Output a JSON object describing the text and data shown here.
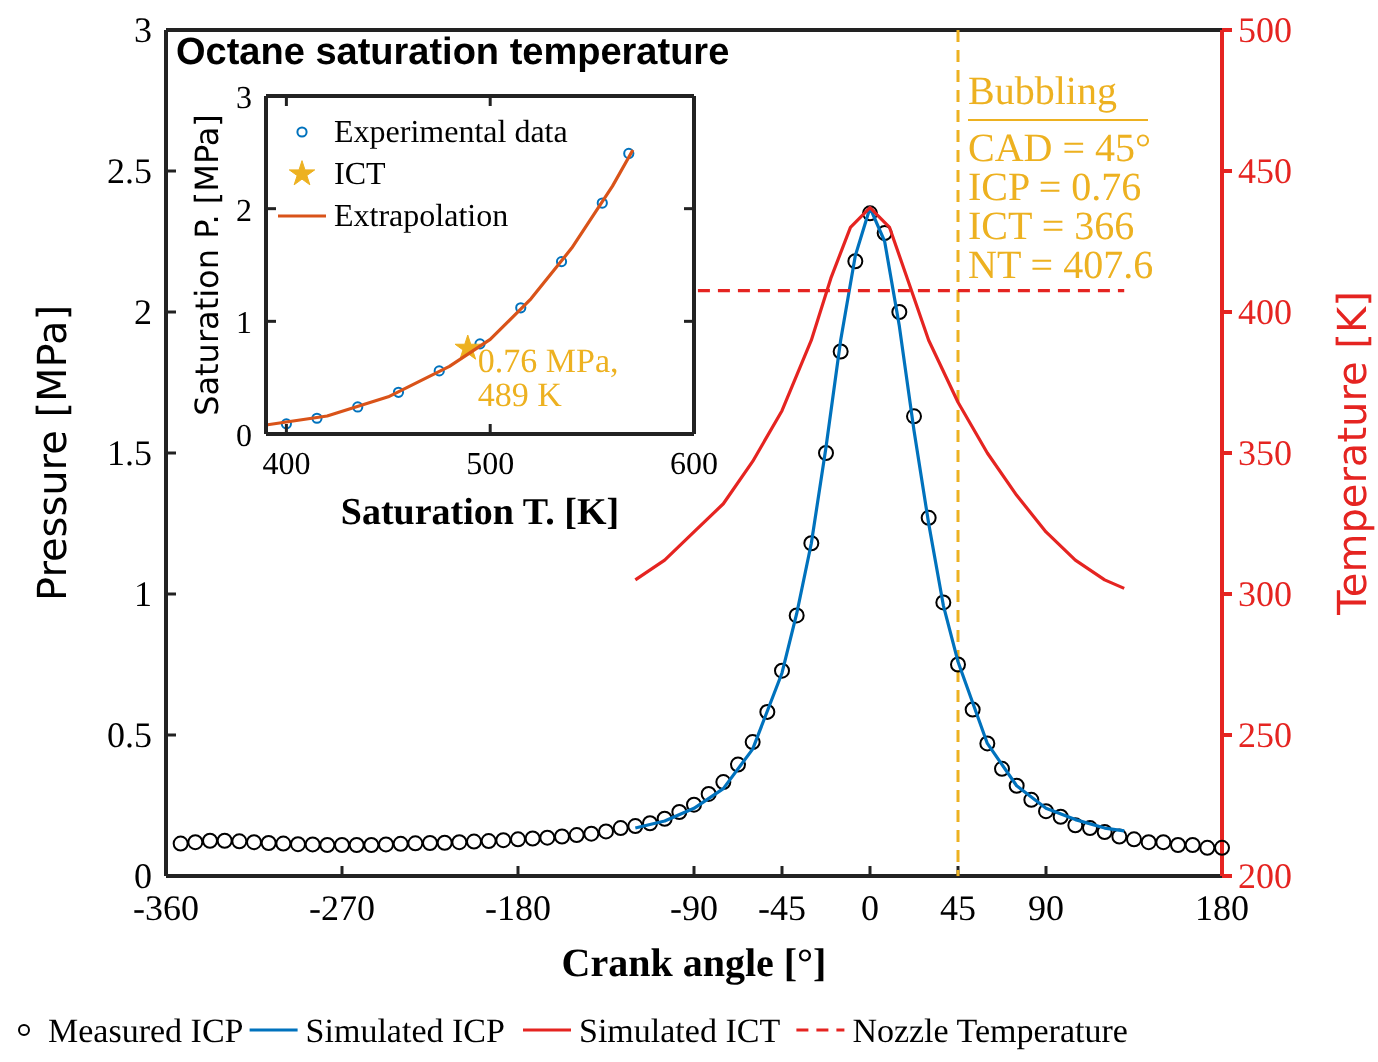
{
  "chart_data": [
    {
      "type": "line",
      "xlabel": "Crank angle [°]",
      "ylabel": "Pressure [MPa]",
      "y2label": "Temperature [K]",
      "xlim": [
        -360,
        180
      ],
      "xticks": [
        -360,
        -270,
        -180,
        -90,
        -45,
        0,
        45,
        90,
        180
      ],
      "ylim": [
        0,
        3
      ],
      "yticks": [
        0,
        0.5,
        1,
        1.5,
        2,
        2.5,
        3
      ],
      "y2lim": [
        200,
        500
      ],
      "y2ticks": [
        200,
        250,
        300,
        350,
        400,
        450,
        500
      ],
      "legend": "bottom",
      "grid": false,
      "ref_lines": [
        {
          "axis": "x",
          "value": 45,
          "color": "#edb120",
          "line_style": "dashed"
        }
      ],
      "annotations": [
        "Bubbling",
        "CAD = 45°",
        "ICP = 0.76",
        "ICT = 366",
        "NT = 407.6"
      ],
      "series": [
        {
          "name": "Measured ICP",
          "type": "scatter",
          "marker": "circle",
          "color": "#000000",
          "x": [
            -352.5,
            -345,
            -337.5,
            -330,
            -322.5,
            -315,
            -307.5,
            -300,
            -292.5,
            -285,
            -277.5,
            -270,
            -262.5,
            -255,
            -247.5,
            -240,
            -232.5,
            -225,
            -217.5,
            -210,
            -202.5,
            -195,
            -187.5,
            -180,
            -172.5,
            -165,
            -157.5,
            -150,
            -142.5,
            -135,
            -127.5,
            -120,
            -112.5,
            -105,
            -97.5,
            -90,
            -82.5,
            -75,
            -67.5,
            -60,
            -52.5,
            -45,
            -37.5,
            -30,
            -22.5,
            -15,
            -7.5,
            0,
            7.5,
            15,
            22.5,
            30,
            37.5,
            45,
            52.5,
            60,
            67.5,
            75,
            82.5,
            90,
            97.5,
            105,
            112.5,
            120,
            127.5,
            135,
            142.5,
            150,
            157.5,
            165,
            172.5,
            180
          ],
          "values": [
            0.115,
            0.12,
            0.125,
            0.125,
            0.123,
            0.12,
            0.117,
            0.115,
            0.113,
            0.112,
            0.11,
            0.11,
            0.11,
            0.11,
            0.112,
            0.114,
            0.116,
            0.117,
            0.118,
            0.12,
            0.122,
            0.124,
            0.127,
            0.13,
            0.133,
            0.136,
            0.14,
            0.145,
            0.15,
            0.158,
            0.17,
            0.177,
            0.187,
            0.203,
            0.227,
            0.253,
            0.291,
            0.333,
            0.395,
            0.475,
            0.582,
            0.728,
            0.924,
            1.18,
            1.5,
            1.86,
            2.18,
            2.35,
            2.28,
            2,
            1.63,
            1.27,
            0.97,
            0.75,
            0.59,
            0.47,
            0.38,
            0.32,
            0.27,
            0.23,
            0.21,
            0.18,
            0.17,
            0.156,
            0.14,
            0.13,
            0.12,
            0.12,
            0.11,
            0.11,
            0.1,
            0.1
          ]
        },
        {
          "name": "Simulated ICP",
          "color": "#0072bd",
          "x": [
            -120,
            -105,
            -90,
            -75,
            -60,
            -45,
            -37.5,
            -30,
            -22.5,
            -15,
            -7.5,
            0,
            7.5,
            15,
            22.5,
            30,
            37.5,
            45,
            60,
            75,
            90,
            105,
            120,
            130
          ],
          "values": [
            0.17,
            0.195,
            0.24,
            0.31,
            0.45,
            0.72,
            0.93,
            1.18,
            1.52,
            1.9,
            2.2,
            2.37,
            2.25,
            1.95,
            1.58,
            1.25,
            0.96,
            0.76,
            0.47,
            0.32,
            0.24,
            0.2,
            0.17,
            0.16
          ]
        },
        {
          "name": "Simulated ICT",
          "axis": "y2",
          "color": "#e52421",
          "x": [
            -120,
            -105,
            -90,
            -75,
            -60,
            -45,
            -30,
            -20,
            -10,
            0,
            10,
            20,
            30,
            45,
            60,
            75,
            90,
            105,
            120,
            130
          ],
          "values": [
            305,
            312,
            322,
            332,
            347,
            365,
            390,
            412,
            430,
            437,
            430,
            410,
            390,
            368,
            350,
            335,
            322,
            312,
            305,
            302
          ]
        },
        {
          "name": "Nozzle Temperature",
          "axis": "y2",
          "line_style": "dashed",
          "color": "#e52421",
          "x": [
            -88,
            130
          ],
          "values": [
            407.6,
            407.6
          ]
        }
      ]
    },
    {
      "type": "scatter",
      "title": "Octane saturation temperature",
      "xlabel": "Saturation T. [K]",
      "ylabel": "Saturation P. [MPa]",
      "xlim": [
        390,
        600
      ],
      "xticks": [
        400,
        500,
        600
      ],
      "ylim": [
        0,
        3
      ],
      "yticks": [
        0,
        1,
        2,
        3
      ],
      "legend": "top left",
      "annotations": [
        {
          "text": "0.76 MPa, 489 K",
          "x": 489,
          "y": 0.76
        }
      ],
      "series": [
        {
          "name": "Experimental data",
          "marker": "circle",
          "color": "#0072bd",
          "x": [
            400,
            415,
            435,
            455,
            475,
            495,
            515,
            535,
            555,
            568
          ],
          "values": [
            0.09,
            0.14,
            0.24,
            0.37,
            0.56,
            0.8,
            1.12,
            1.53,
            2.05,
            2.49
          ]
        },
        {
          "name": "ICT",
          "marker": "star",
          "color": "#edb120",
          "x": [
            489
          ],
          "values": [
            0.76
          ]
        },
        {
          "name": "Extrapolation",
          "type": "line",
          "color": "#d95319",
          "x": [
            390,
            420,
            450,
            480,
            500,
            520,
            540,
            560,
            570
          ],
          "values": [
            0.08,
            0.16,
            0.33,
            0.6,
            0.84,
            1.2,
            1.65,
            2.2,
            2.52
          ]
        }
      ]
    }
  ]
}
